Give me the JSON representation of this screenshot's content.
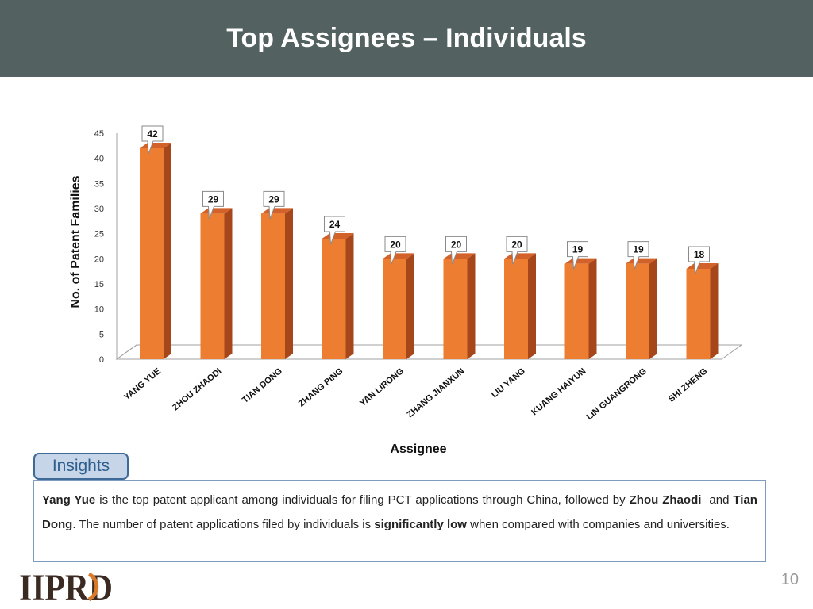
{
  "header": {
    "title": "Top Assignees – Individuals"
  },
  "chart_data": {
    "type": "bar",
    "title": "",
    "xlabel": "Assignee",
    "ylabel": "No. of Patent Families",
    "categories": [
      "YANG YUE",
      "ZHOU ZHAODI",
      "TIAN DONG",
      "ZHANG PING",
      "YAN LIRONG",
      "ZHANG JIANXUN",
      "LIU YANG",
      "KUANG HAIYUN",
      "LIN GUANGRONG",
      "SHI ZHENG"
    ],
    "values": [
      42,
      29,
      29,
      24,
      20,
      20,
      20,
      19,
      19,
      18
    ],
    "ylim": [
      0,
      45
    ],
    "yticks": [
      0,
      5,
      10,
      15,
      20,
      25,
      30,
      35,
      40,
      45
    ],
    "grid": false,
    "data_labels": true,
    "bar_color": "#ed7d31",
    "bar_side_color": "#a6471b",
    "bar_top_color": "#d2622a"
  },
  "insights": {
    "tab_label": "Insights",
    "lead_name": "Yang Yue",
    "text_1": " is the top patent applicant among individuals for filing PCT applications through China, followed by ",
    "name_2": "Zhou Zhaodi",
    "text_2": "  and ",
    "name_3": "Tian Dong",
    "text_3": ". The number of patent applications filed by individuals is ",
    "emphasis": "significantly low",
    "text_4": " when compared with companies and universities."
  },
  "footer": {
    "logo_text": "IIPRD",
    "page_number": "10"
  }
}
